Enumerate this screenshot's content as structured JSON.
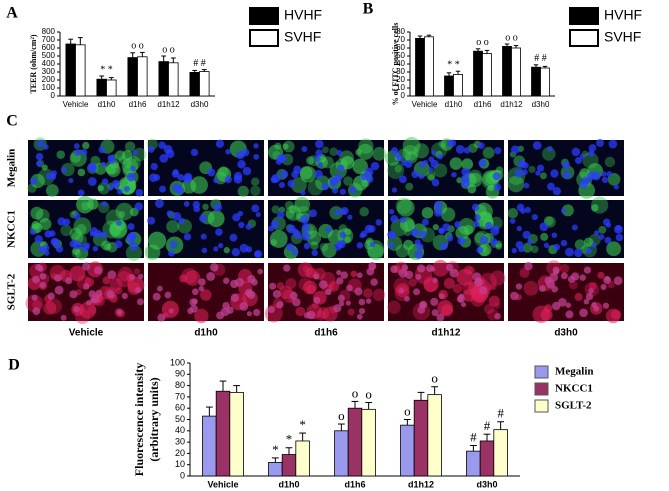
{
  "chart_data": [
    {
      "type": "bar",
      "panel": "A",
      "ylabel": "TEER (ohm/cm²)",
      "categories": [
        "Vehicle",
        "d1h0",
        "d1h6",
        "d1h12",
        "d3h0"
      ],
      "series": [
        {
          "name": "HVHF",
          "color": "#000000",
          "values": [
            650,
            210,
            480,
            430,
            295
          ],
          "errors": [
            60,
            40,
            60,
            70,
            25
          ]
        },
        {
          "name": "SVHF",
          "color": "#ffffff",
          "values": [
            640,
            200,
            490,
            415,
            305
          ],
          "errors": [
            90,
            30,
            55,
            60,
            25
          ]
        }
      ],
      "markers": [
        null,
        "* *",
        "o o",
        "o o",
        "# #"
      ],
      "ylim": [
        0,
        800
      ],
      "yticks": [
        0,
        100,
        200,
        300,
        400,
        500,
        600,
        700,
        800
      ],
      "legend": "right"
    },
    {
      "type": "bar",
      "panel": "B",
      "ylabel": "% of FITC positive cells",
      "categories": [
        "Vehicle",
        "d1h0",
        "d1h6",
        "d1h12",
        "d3h0"
      ],
      "series": [
        {
          "name": "HVHF",
          "color": "#000000",
          "values": [
            72,
            25,
            56,
            62,
            36
          ],
          "errors": [
            3,
            4,
            3,
            3,
            3
          ]
        },
        {
          "name": "SVHF",
          "color": "#ffffff",
          "values": [
            74,
            27,
            53,
            60,
            35
          ],
          "errors": [
            2,
            4,
            4,
            3,
            2
          ]
        }
      ],
      "markers": [
        null,
        "* *",
        "o o",
        "o o",
        "# #"
      ],
      "ylim": [
        0,
        80
      ],
      "yticks": [
        0,
        10,
        20,
        30,
        40,
        50,
        60,
        70,
        80
      ],
      "legend": "right"
    },
    {
      "type": "bar",
      "panel": "D",
      "ylabel": [
        "Fluorescence intensity",
        "(arbitrary units)"
      ],
      "categories": [
        "Vehicle",
        "d1h0",
        "d1h6",
        "d1h12",
        "d3h0"
      ],
      "series": [
        {
          "name": "Megalin",
          "color": "#9999ee",
          "values": [
            53,
            12,
            40,
            45,
            22
          ],
          "errors": [
            8,
            4,
            6,
            5,
            5
          ],
          "markers": [
            null,
            "*",
            "o",
            "o",
            "#"
          ]
        },
        {
          "name": "NKCC1",
          "color": "#993366",
          "values": [
            75,
            19,
            60,
            67,
            31
          ],
          "errors": [
            9,
            6,
            6,
            7,
            6
          ],
          "markers": [
            null,
            "*",
            "o",
            null,
            "#"
          ]
        },
        {
          "name": "SGLT-2",
          "color": "#ffffcc",
          "values": [
            74,
            31,
            59,
            72,
            41
          ],
          "errors": [
            6,
            7,
            6,
            7,
            7
          ],
          "markers": [
            null,
            "*",
            "o",
            "o",
            "#"
          ]
        }
      ],
      "ylim": [
        0,
        100
      ],
      "yticks": [
        0,
        10,
        20,
        30,
        40,
        50,
        60,
        70,
        80,
        90,
        100
      ],
      "legend": "right"
    }
  ],
  "image_panel": {
    "panel": "C",
    "rows": [
      "Megalin",
      "NKCC1",
      "SGLT-2"
    ],
    "columns": [
      "Vehicle",
      "d1h0",
      "d1h6",
      "d1h12",
      "d3h0"
    ]
  }
}
